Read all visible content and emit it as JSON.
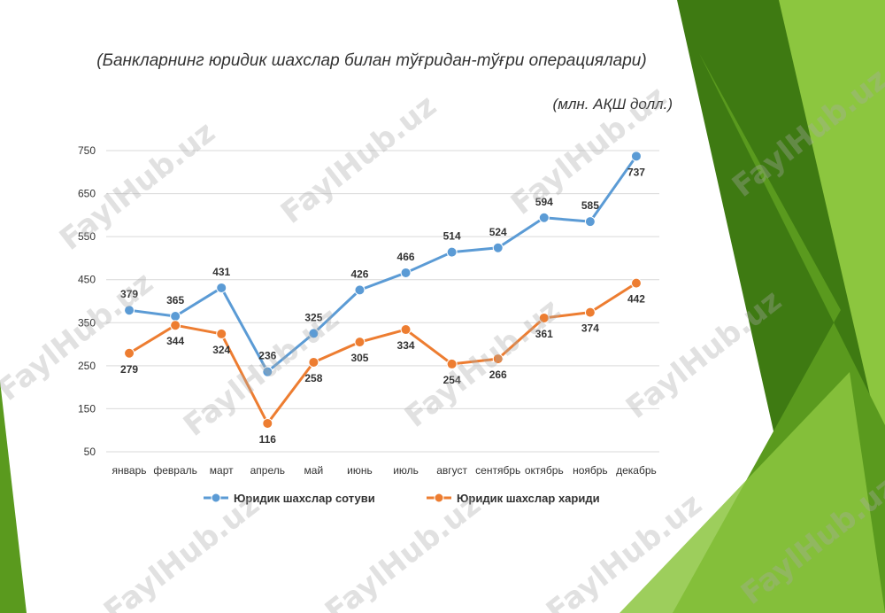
{
  "slide": {
    "title": "(Банкларнинг юридик шахслар билан тўғридан-тўғри операциялари)",
    "units": "(млн. АҚШ долл.)",
    "watermark_text": "FaylHub.uz",
    "accent_colors": [
      "#5a9a1e",
      "#8cc63f",
      "#3e7a12"
    ]
  },
  "chart_data": {
    "type": "line",
    "title": "(Банкларнинг юридик шахслар билан тўғридан-тўғри операциялари)",
    "subtitle": "(млн. АҚШ долл.)",
    "categories": [
      "январь",
      "февраль",
      "март",
      "апрель",
      "май",
      "июнь",
      "июль",
      "август",
      "сентябрь",
      "октябрь",
      "ноябрь",
      "декабрь"
    ],
    "ylim": [
      50,
      750
    ],
    "yticks": [
      50,
      150,
      250,
      350,
      450,
      550,
      650,
      750
    ],
    "grid": true,
    "legend_position": "bottom",
    "series": [
      {
        "name": "Юридик шахслар сотуви",
        "color": "#5b9bd5",
        "values": [
          379,
          365,
          431,
          236,
          325,
          426,
          466,
          514,
          524,
          594,
          585,
          737
        ],
        "label_position": [
          "above",
          "above",
          "above",
          "above",
          "above",
          "above",
          "above",
          "above",
          "above",
          "above",
          "above",
          "below"
        ]
      },
      {
        "name": "Юридик шахслар хариди",
        "color": "#ed7d31",
        "values": [
          279,
          344,
          324,
          116,
          258,
          305,
          334,
          254,
          266,
          361,
          374,
          442
        ],
        "label_position": [
          "below",
          "below",
          "below",
          "below",
          "below",
          "below",
          "below",
          "below",
          "below",
          "below",
          "below",
          "below"
        ]
      }
    ]
  }
}
